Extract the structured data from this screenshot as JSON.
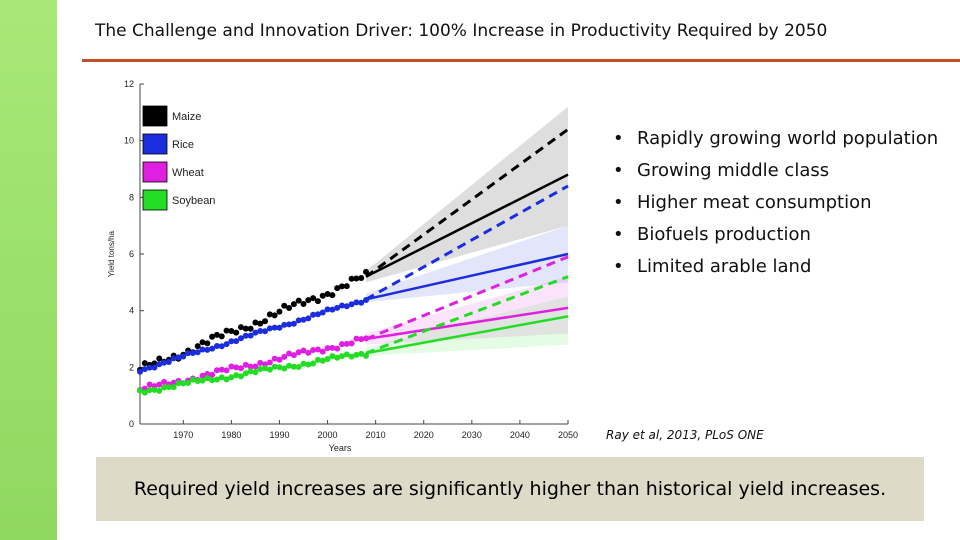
{
  "title": "The Challenge and Innovation Driver: 100% Increase in Productivity Required by 2050",
  "bullets": [
    "Rapidly growing world population",
    "Growing middle class",
    "Higher meat consumption",
    "Biofuels production",
    "Limited arable land"
  ],
  "citation": "Ray et al, 2013, PLoS ONE",
  "callout": "Required yield increases are significantly higher than historical yield increases.",
  "colors": {
    "accent_rule": "#c0502a",
    "left_bar": "#9fe070",
    "callout_bg": "#dddac8"
  },
  "chart_data": {
    "type": "line",
    "title": "",
    "xlabel": "Years",
    "ylabel": "Yield tons/ha",
    "xlim": [
      1961,
      2050
    ],
    "ylim": [
      0,
      12
    ],
    "x_ticks": [
      1970,
      1980,
      1990,
      2000,
      2010,
      2020,
      2030,
      2040,
      2050
    ],
    "y_ticks": [
      0,
      2,
      4,
      6,
      8,
      10,
      12
    ],
    "legend": [
      "Maize",
      "Rice",
      "Wheat",
      "Soybean"
    ],
    "legend_position": "top-left",
    "series": [
      {
        "name": "Maize",
        "color": "#000000",
        "history": {
          "start": 1961,
          "end": 2008,
          "from": 1.9,
          "to": 5.2,
          "noise": 0.18
        },
        "trend": [
          [
            2008,
            5.2
          ],
          [
            2050,
            8.8
          ]
        ],
        "required": [
          [
            2008,
            5.2
          ],
          [
            2050,
            10.4
          ]
        ],
        "band": {
          "low": [
            5.0,
            7.0
          ],
          "high": [
            5.4,
            11.2
          ]
        }
      },
      {
        "name": "Rice",
        "color": "#1a2ee0",
        "history": {
          "start": 1961,
          "end": 2008,
          "from": 1.9,
          "to": 4.4,
          "noise": 0.07
        },
        "trend": [
          [
            2008,
            4.4
          ],
          [
            2050,
            6.0
          ]
        ],
        "required": [
          [
            2008,
            4.4
          ],
          [
            2050,
            8.4
          ]
        ],
        "band": {
          "low": [
            4.3,
            5.0
          ],
          "high": [
            4.6,
            7.0
          ]
        }
      },
      {
        "name": "Wheat",
        "color": "#e020e0",
        "history": {
          "start": 1961,
          "end": 2008,
          "from": 1.2,
          "to": 3.0,
          "noise": 0.12
        },
        "trend": [
          [
            2008,
            3.0
          ],
          [
            2050,
            4.1
          ]
        ],
        "required": [
          [
            2008,
            3.0
          ],
          [
            2050,
            5.9
          ]
        ],
        "band": {
          "low": [
            2.8,
            3.2
          ],
          "high": [
            3.2,
            5.2
          ]
        }
      },
      {
        "name": "Soybean",
        "color": "#22dd22",
        "history": {
          "start": 1961,
          "end": 2008,
          "from": 1.15,
          "to": 2.5,
          "noise": 0.1
        },
        "trend": [
          [
            2008,
            2.5
          ],
          [
            2050,
            3.8
          ]
        ],
        "required": [
          [
            2008,
            2.5
          ],
          [
            2050,
            5.2
          ]
        ],
        "band": {
          "low": [
            2.4,
            2.8
          ],
          "high": [
            2.7,
            4.5
          ]
        }
      }
    ]
  }
}
